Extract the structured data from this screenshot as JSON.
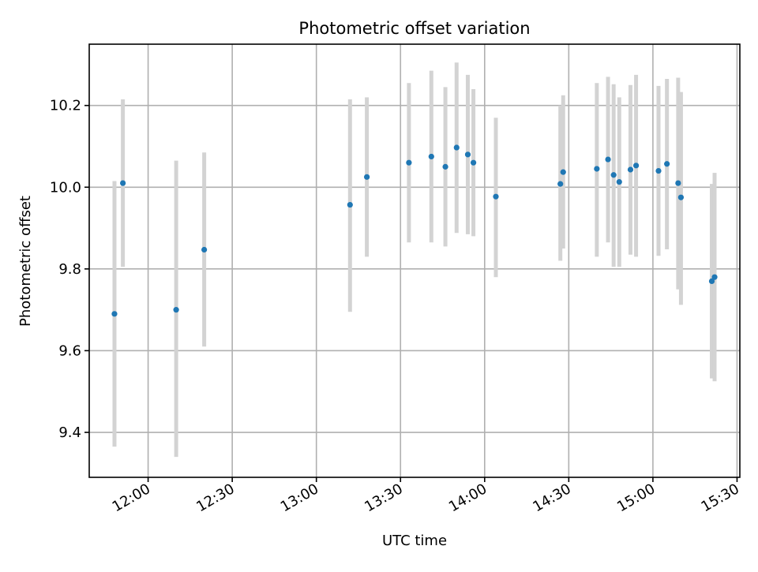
{
  "chart_data": {
    "type": "scatter",
    "title": "Photometric offset variation",
    "xlabel": "UTC time",
    "ylabel": "Photometric offset",
    "x_tick_labels": [
      "12:00",
      "12:30",
      "13:00",
      "13:30",
      "14:00",
      "14:30",
      "15:00",
      "15:30"
    ],
    "y_tick_labels": [
      "9.4",
      "9.6",
      "9.8",
      "10.0",
      "10.2"
    ],
    "x_ticks": [
      "12:00",
      "12:30",
      "13:00",
      "13:30",
      "14:00",
      "14:30",
      "15:00",
      "15:30"
    ],
    "y_ticks": [
      9.4,
      9.6,
      9.8,
      10.0,
      10.2
    ],
    "xlim": [
      "11:39",
      "15:31"
    ],
    "ylim": [
      9.29,
      10.35
    ],
    "grid": true,
    "series": [
      {
        "marker_color": "#1f77b4",
        "errorbar_color": "#d3d3d3",
        "points": [
          {
            "x": "11:48",
            "y": 9.69,
            "lo": 9.365,
            "hi": 10.015
          },
          {
            "x": "11:51",
            "y": 10.01,
            "lo": 9.805,
            "hi": 10.215
          },
          {
            "x": "12:10",
            "y": 9.7,
            "lo": 9.34,
            "hi": 10.065
          },
          {
            "x": "12:20",
            "y": 9.847,
            "lo": 9.61,
            "hi": 10.085
          },
          {
            "x": "13:12",
            "y": 9.957,
            "lo": 9.695,
            "hi": 10.215
          },
          {
            "x": "13:18",
            "y": 10.025,
            "lo": 9.83,
            "hi": 10.22
          },
          {
            "x": "13:33",
            "y": 10.06,
            "lo": 9.865,
            "hi": 10.255
          },
          {
            "x": "13:41",
            "y": 10.075,
            "lo": 9.865,
            "hi": 10.285
          },
          {
            "x": "13:46",
            "y": 10.05,
            "lo": 9.855,
            "hi": 10.245
          },
          {
            "x": "13:50",
            "y": 10.097,
            "lo": 9.888,
            "hi": 10.305
          },
          {
            "x": "13:54",
            "y": 10.08,
            "lo": 9.885,
            "hi": 10.275
          },
          {
            "x": "13:56",
            "y": 10.06,
            "lo": 9.88,
            "hi": 10.24
          },
          {
            "x": "14:04",
            "y": 9.977,
            "lo": 9.78,
            "hi": 10.17
          },
          {
            "x": "14:27",
            "y": 10.008,
            "lo": 9.82,
            "hi": 10.2
          },
          {
            "x": "14:28",
            "y": 10.037,
            "lo": 9.85,
            "hi": 10.225
          },
          {
            "x": "14:40",
            "y": 10.045,
            "lo": 9.83,
            "hi": 10.255
          },
          {
            "x": "14:44",
            "y": 10.068,
            "lo": 9.865,
            "hi": 10.27
          },
          {
            "x": "14:46",
            "y": 10.03,
            "lo": 9.805,
            "hi": 10.252
          },
          {
            "x": "14:48",
            "y": 10.013,
            "lo": 9.805,
            "hi": 10.22
          },
          {
            "x": "14:52",
            "y": 10.043,
            "lo": 9.835,
            "hi": 10.25
          },
          {
            "x": "14:54",
            "y": 10.053,
            "lo": 9.83,
            "hi": 10.275
          },
          {
            "x": "15:02",
            "y": 10.04,
            "lo": 9.832,
            "hi": 10.248
          },
          {
            "x": "15:05",
            "y": 10.057,
            "lo": 9.848,
            "hi": 10.265
          },
          {
            "x": "15:09",
            "y": 10.01,
            "lo": 9.75,
            "hi": 10.268
          },
          {
            "x": "15:10",
            "y": 9.975,
            "lo": 9.712,
            "hi": 10.233
          },
          {
            "x": "15:21",
            "y": 9.77,
            "lo": 9.532,
            "hi": 10.008
          },
          {
            "x": "15:22",
            "y": 9.78,
            "lo": 9.525,
            "hi": 10.035
          }
        ]
      }
    ]
  }
}
